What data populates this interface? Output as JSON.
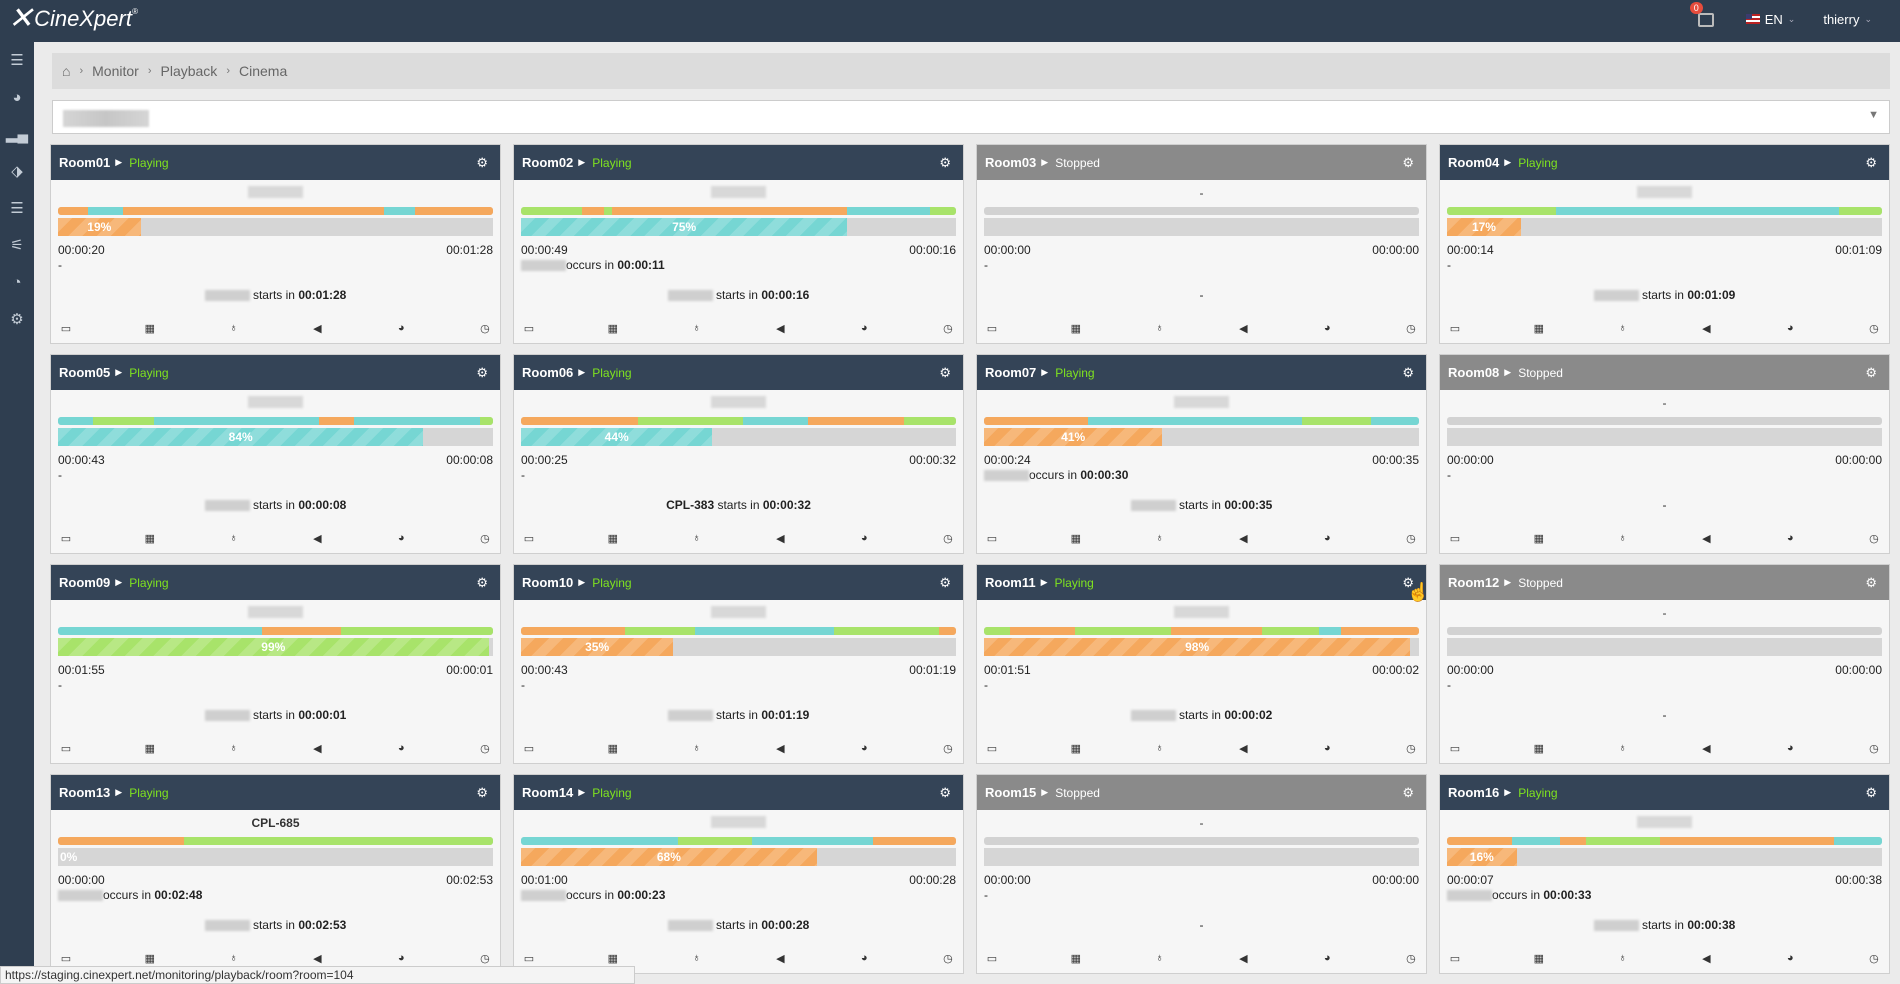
{
  "app": {
    "logo": "CineXpert"
  },
  "topbar": {
    "notification_count": "0",
    "language": "EN",
    "user": "thierry"
  },
  "sidebar": {
    "items": [
      "menu-icon",
      "dashboard-icon",
      "signal-icon",
      "tag-icon",
      "database-icon",
      "sliders-icon",
      "pie-chart-icon",
      "gear-icon"
    ]
  },
  "breadcrumb": {
    "home": "home-icon",
    "items": [
      "Monitor",
      "Playback",
      "Cinema"
    ]
  },
  "rooms": [
    {
      "name": "Room01",
      "status": "Playing",
      "title": "",
      "progress": "19%",
      "pct": 19,
      "fillColor": "#f5a85d",
      "elapsed": "00:00:20",
      "remaining": "00:01:28",
      "line2": "-",
      "evText": " starts in ",
      "evTime": "00:01:28",
      "segs": [
        [
          "#f5a85d",
          7
        ],
        [
          "#76d6d3",
          8
        ],
        [
          "#f5a85d",
          60
        ],
        [
          "#76d6d3",
          7
        ],
        [
          "#f5a85d",
          3
        ],
        [
          "#f5a85d",
          15
        ]
      ]
    },
    {
      "name": "Room02",
      "status": "Playing",
      "title": "",
      "progress": "75%",
      "pct": 75,
      "fillColor": "#76d6d3",
      "elapsed": "00:00:49",
      "remaining": "00:00:16",
      "line2": "occurs in ",
      "line2time": "00:00:11",
      "evText": " starts in ",
      "evTime": "00:00:16",
      "segs": [
        [
          "#a8e36a",
          14
        ],
        [
          "#f5a85d",
          5
        ],
        [
          "#a8e36a",
          2
        ],
        [
          "#f5a85d",
          54
        ],
        [
          "#76d6d3",
          19
        ],
        [
          "#a8e36a",
          6
        ]
      ]
    },
    {
      "name": "Room03",
      "status": "Stopped",
      "title": "-",
      "progress": "",
      "pct": 0,
      "fillColor": "",
      "elapsed": "00:00:00",
      "remaining": "00:00:00",
      "line2": "-",
      "evText": "-",
      "evTime": "",
      "segs": []
    },
    {
      "name": "Room04",
      "status": "Playing",
      "title": "",
      "progress": "17%",
      "pct": 17,
      "fillColor": "#f5a85d",
      "elapsed": "00:00:14",
      "remaining": "00:01:09",
      "line2": "-",
      "evText": " starts in ",
      "evTime": "00:01:09",
      "segs": [
        [
          "#a8e36a",
          25
        ],
        [
          "#76d6d3",
          65
        ],
        [
          "#a8e36a",
          10
        ]
      ]
    },
    {
      "name": "Room05",
      "status": "Playing",
      "title": "",
      "progress": "84%",
      "pct": 84,
      "fillColor": "#76d6d3",
      "elapsed": "00:00:43",
      "remaining": "00:00:08",
      "line2": "-",
      "evText": " starts in ",
      "evTime": "00:00:08",
      "segs": [
        [
          "#76d6d3",
          8
        ],
        [
          "#a8e36a",
          14
        ],
        [
          "#76d6d3",
          38
        ],
        [
          "#f5a85d",
          8
        ],
        [
          "#76d6d3",
          29
        ],
        [
          "#a8e36a",
          3
        ]
      ]
    },
    {
      "name": "Room06",
      "status": "Playing",
      "title": "",
      "progress": "44%",
      "pct": 44,
      "fillColor": "#76d6d3",
      "elapsed": "00:00:25",
      "remaining": "00:00:32",
      "line2": "-",
      "evText": " starts in ",
      "evTime": "00:00:32",
      "evPrefix": "CPL-383",
      "segs": [
        [
          "#f5a85d",
          27
        ],
        [
          "#a8e36a",
          24
        ],
        [
          "#76d6d3",
          15
        ],
        [
          "#f5a85d",
          22
        ],
        [
          "#a8e36a",
          12
        ]
      ]
    },
    {
      "name": "Room07",
      "status": "Playing",
      "title": "",
      "progress": "41%",
      "pct": 41,
      "fillColor": "#f5a85d",
      "elapsed": "00:00:24",
      "remaining": "00:00:35",
      "line2": "occurs in ",
      "line2time": "00:00:30",
      "evText": " starts in ",
      "evTime": "00:00:35",
      "segs": [
        [
          "#f5a85d",
          24
        ],
        [
          "#76d6d3",
          49
        ],
        [
          "#a8e36a",
          16
        ],
        [
          "#76d6d3",
          11
        ]
      ]
    },
    {
      "name": "Room08",
      "status": "Stopped",
      "title": "-",
      "progress": "",
      "pct": 0,
      "fillColor": "",
      "elapsed": "00:00:00",
      "remaining": "00:00:00",
      "line2": "-",
      "evText": "-",
      "evTime": "",
      "segs": []
    },
    {
      "name": "Room09",
      "status": "Playing",
      "title": "",
      "progress": "99%",
      "pct": 99,
      "fillColor": "#a8e36a",
      "elapsed": "00:01:55",
      "remaining": "00:00:01",
      "line2": "-",
      "evText": " starts in ",
      "evTime": "00:00:01",
      "segs": [
        [
          "#76d6d3",
          47
        ],
        [
          "#f5a85d",
          18
        ],
        [
          "#a8e36a",
          35
        ]
      ]
    },
    {
      "name": "Room10",
      "status": "Playing",
      "title": "",
      "progress": "35%",
      "pct": 35,
      "fillColor": "#f5a85d",
      "elapsed": "00:00:43",
      "remaining": "00:01:19",
      "line2": "-",
      "evText": " starts in ",
      "evTime": "00:01:19",
      "segs": [
        [
          "#f5a85d",
          24
        ],
        [
          "#a8e36a",
          16
        ],
        [
          "#76d6d3",
          32
        ],
        [
          "#a8e36a",
          24
        ],
        [
          "#f5a85d",
          4
        ]
      ]
    },
    {
      "name": "Room11",
      "status": "Playing",
      "title": "",
      "progress": "98%",
      "pct": 98,
      "fillColor": "#f5a85d",
      "elapsed": "00:01:51",
      "remaining": "00:00:02",
      "line2": "-",
      "evText": " starts in ",
      "evTime": "00:00:02",
      "segs": [
        [
          "#a8e36a",
          6
        ],
        [
          "#f5a85d",
          15
        ],
        [
          "#a8e36a",
          22
        ],
        [
          "#f5a85d",
          21
        ],
        [
          "#a8e36a",
          13
        ],
        [
          "#76d6d3",
          5
        ],
        [
          "#f5a85d",
          18
        ]
      ]
    },
    {
      "name": "Room12",
      "status": "Stopped",
      "title": "-",
      "progress": "",
      "pct": 0,
      "fillColor": "",
      "elapsed": "00:00:00",
      "remaining": "00:00:00",
      "line2": "-",
      "evText": "-",
      "evTime": "",
      "segs": []
    },
    {
      "name": "Room13",
      "status": "Playing",
      "title": "CPL-685",
      "progress": "0%",
      "pct": 0,
      "fillColor": "#f5a85d",
      "elapsed": "00:00:00",
      "remaining": "00:02:53",
      "line2": "occurs in ",
      "line2time": "00:02:48",
      "evText": " starts in ",
      "evTime": "00:02:53",
      "segs": [
        [
          "#f5a85d",
          29
        ],
        [
          "#a8e36a",
          71
        ]
      ]
    },
    {
      "name": "Room14",
      "status": "Playing",
      "title": "",
      "progress": "68%",
      "pct": 68,
      "fillColor": "#f5a85d",
      "elapsed": "00:01:00",
      "remaining": "00:00:28",
      "line2": "occurs in ",
      "line2time": "00:00:23",
      "evText": " starts in ",
      "evTime": "00:00:28",
      "segs": [
        [
          "#76d6d3",
          36
        ],
        [
          "#a8e36a",
          17
        ],
        [
          "#76d6d3",
          28
        ],
        [
          "#f5a85d",
          19
        ]
      ]
    },
    {
      "name": "Room15",
      "status": "Stopped",
      "title": "-",
      "progress": "",
      "pct": 0,
      "fillColor": "",
      "elapsed": "00:00:00",
      "remaining": "00:00:00",
      "line2": "-",
      "evText": "-",
      "evTime": "",
      "segs": []
    },
    {
      "name": "Room16",
      "status": "Playing",
      "title": "",
      "progress": "16%",
      "pct": 16,
      "fillColor": "#f5a85d",
      "elapsed": "00:00:07",
      "remaining": "00:00:38",
      "line2": "occurs in ",
      "line2time": "00:00:33",
      "evText": " starts in ",
      "evTime": "00:00:38",
      "segs": [
        [
          "#f5a85d",
          15
        ],
        [
          "#76d6d3",
          11
        ],
        [
          "#f5a85d",
          6
        ],
        [
          "#a8e36a",
          17
        ],
        [
          "#f5a85d",
          40
        ],
        [
          "#76d6d3",
          11
        ]
      ]
    }
  ],
  "card_icons": [
    "monitor-icon",
    "film-icon",
    "bulb-icon",
    "speaker-icon",
    "pie-chart-icon",
    "clock-icon"
  ],
  "statusbar": {
    "url": "https://staging.cinexpert.net/monitoring/playback/room?room=104"
  }
}
